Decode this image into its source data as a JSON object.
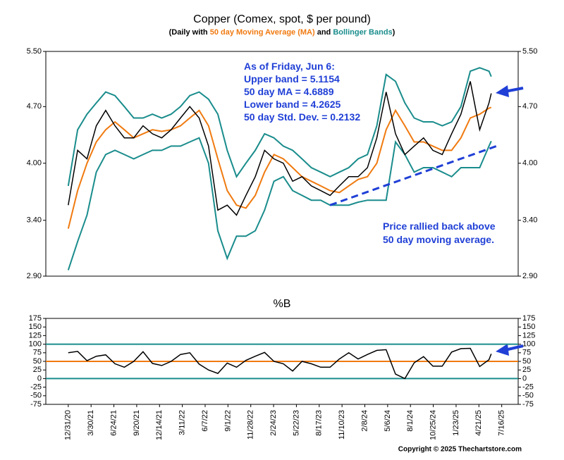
{
  "chart_data": [
    {
      "type": "line",
      "title": "Copper (Comex, spot, $ per pound)",
      "subtitle_parts": [
        {
          "text": "(Daily with ",
          "color": "#000000"
        },
        {
          "text": "50 day Moving Average (MA)",
          "color": "#f07a10"
        },
        {
          "text": " and ",
          "color": "#000000"
        },
        {
          "text": "Bollinger Bands",
          "color": "#1a8c8c"
        },
        {
          "text": ")",
          "color": "#000000"
        }
      ],
      "annotations": [
        "As of Friday, Jun 6:",
        "Upper band = 5.1154",
        "50 day MA = 4.6889",
        "Lower band = 4.2625",
        "50 day Std. Dev. = 0.2132",
        "Price rallied back above",
        "50 day moving average."
      ],
      "log_scale": true,
      "xlim": [
        -60,
        1203
      ],
      "ylim": [
        2.9,
        5.5
      ],
      "yticks": [
        {
          "value": 2.9,
          "label": "2.90"
        },
        {
          "value": 3.4,
          "label": "3.40"
        },
        {
          "value": 4.0,
          "label": "4.00"
        },
        {
          "value": 4.7,
          "label": "4.70"
        },
        {
          "value": 5.5,
          "label": "5.50"
        }
      ],
      "x": [
        0,
        25,
        50,
        75,
        100,
        125,
        150,
        175,
        200,
        225,
        250,
        275,
        300,
        325,
        350,
        375,
        400,
        425,
        450,
        475,
        500,
        525,
        550,
        575,
        600,
        625,
        650,
        675,
        700,
        725,
        750,
        775,
        800,
        825,
        850,
        875,
        900,
        925,
        950,
        975,
        1000,
        1025,
        1050,
        1075,
        1100,
        1125,
        1131
      ],
      "series": [
        {
          "color": "#1a8c8c",
          "values": [
            3.75,
            4.4,
            4.6,
            4.75,
            4.9,
            4.85,
            4.7,
            4.55,
            4.55,
            4.6,
            4.55,
            4.6,
            4.7,
            4.85,
            4.9,
            4.8,
            4.6,
            4.15,
            3.85,
            4.0,
            4.15,
            4.35,
            4.3,
            4.2,
            4.15,
            4.05,
            3.95,
            3.9,
            3.85,
            3.9,
            3.95,
            4.05,
            4.1,
            4.45,
            5.15,
            5.05,
            4.75,
            4.55,
            4.5,
            4.5,
            4.45,
            4.5,
            4.7,
            5.2,
            5.25,
            5.2,
            5.12
          ]
        },
        {
          "color": "#1a8c8c",
          "values": [
            2.95,
            3.2,
            3.45,
            3.9,
            4.1,
            4.15,
            4.1,
            4.05,
            4.1,
            4.15,
            4.15,
            4.2,
            4.2,
            4.25,
            4.3,
            4.0,
            3.3,
            3.05,
            3.25,
            3.25,
            3.3,
            3.5,
            3.8,
            3.85,
            3.7,
            3.65,
            3.6,
            3.6,
            3.55,
            3.55,
            3.55,
            3.58,
            3.6,
            3.6,
            3.6,
            4.25,
            4.1,
            3.9,
            3.95,
            3.95,
            3.9,
            3.85,
            3.95,
            3.95,
            3.95,
            4.2,
            4.26
          ]
        },
        {
          "color": "#f07a10",
          "values": [
            3.32,
            3.7,
            4.0,
            4.25,
            4.4,
            4.5,
            4.4,
            4.3,
            4.35,
            4.4,
            4.38,
            4.4,
            4.45,
            4.55,
            4.65,
            4.45,
            4.05,
            3.7,
            3.55,
            3.52,
            3.65,
            3.9,
            4.1,
            4.05,
            3.95,
            3.85,
            3.8,
            3.75,
            3.7,
            3.68,
            3.75,
            3.82,
            3.85,
            4.0,
            4.4,
            4.65,
            4.45,
            4.25,
            4.25,
            4.2,
            4.15,
            4.15,
            4.3,
            4.55,
            4.6,
            4.68,
            4.69
          ]
        },
        {
          "color": "#000000",
          "values": [
            3.55,
            4.15,
            4.05,
            4.45,
            4.65,
            4.45,
            4.3,
            4.3,
            4.45,
            4.35,
            4.3,
            4.4,
            4.55,
            4.7,
            4.55,
            4.2,
            3.5,
            3.55,
            3.45,
            3.65,
            3.85,
            4.15,
            4.05,
            4.0,
            3.8,
            3.85,
            3.75,
            3.7,
            3.65,
            3.75,
            3.85,
            3.85,
            3.95,
            4.3,
            4.9,
            4.35,
            4.1,
            4.2,
            4.3,
            4.15,
            4.1,
            4.35,
            4.6,
            5.05,
            4.4,
            4.75,
            4.88
          ]
        }
      ],
      "trendline": {
        "x": [
          700,
          1145
        ],
        "y": [
          3.55,
          4.2
        ],
        "color": "#1f3fd6"
      }
    },
    {
      "type": "line",
      "title": "%B",
      "xlim": [
        -60,
        1203
      ],
      "ylim": [
        -75,
        175
      ],
      "yticks": [
        -75,
        -50,
        -25,
        0,
        25,
        50,
        75,
        100,
        125,
        150,
        175
      ],
      "reference_lines": [
        {
          "value": 100,
          "color": "#1a8c8c"
        },
        {
          "value": 50,
          "color": "#f07a10"
        },
        {
          "value": 0,
          "color": "#1a8c8c"
        }
      ],
      "x": [
        0,
        25,
        50,
        75,
        100,
        125,
        150,
        175,
        200,
        225,
        250,
        275,
        300,
        325,
        350,
        375,
        400,
        425,
        450,
        475,
        500,
        525,
        550,
        575,
        600,
        625,
        650,
        675,
        700,
        725,
        750,
        775,
        800,
        825,
        850,
        875,
        900,
        925,
        950,
        975,
        1000,
        1025,
        1050,
        1075,
        1100,
        1125,
        1131
      ],
      "series": [
        {
          "color": "#000000",
          "values": [
            75,
            79,
            52,
            65,
            69,
            43,
            33,
            50,
            78,
            44,
            38,
            50,
            70,
            75,
            42,
            25,
            15,
            45,
            33,
            53,
            65,
            76,
            50,
            43,
            22,
            50,
            43,
            33,
            33,
            57,
            75,
            57,
            70,
            82,
            84,
            13,
            0,
            46,
            64,
            36,
            36,
            77,
            87,
            88,
            35,
            55,
            72
          ]
        }
      ],
      "xticks": [
        {
          "value": 0,
          "label": "12/31/20"
        },
        {
          "value": 61,
          "label": "3/30/21"
        },
        {
          "value": 122,
          "label": "6/24/21"
        },
        {
          "value": 183,
          "label": "9/20/21"
        },
        {
          "value": 244,
          "label": "12/14/21"
        },
        {
          "value": 305,
          "label": "3/11/22"
        },
        {
          "value": 366,
          "label": "6/7/22"
        },
        {
          "value": 427,
          "label": "9/1/22"
        },
        {
          "value": 488,
          "label": "11/28/22"
        },
        {
          "value": 549,
          "label": "2/24/23"
        },
        {
          "value": 610,
          "label": "5/22/23"
        },
        {
          "value": 671,
          "label": "8/17/23"
        },
        {
          "value": 732,
          "label": "11/10/23"
        },
        {
          "value": 793,
          "label": "2/8/24"
        },
        {
          "value": 854,
          "label": "5/6/24"
        },
        {
          "value": 915,
          "label": "8/1/24"
        },
        {
          "value": 976,
          "label": "10/25/24"
        },
        {
          "value": 1037,
          "label": "1/23/25"
        },
        {
          "value": 1098,
          "label": "4/21/25"
        },
        {
          "value": 1159,
          "label": "7/16/25"
        }
      ],
      "copyright": "Copyright © 2025 Thechartstore.com"
    }
  ]
}
